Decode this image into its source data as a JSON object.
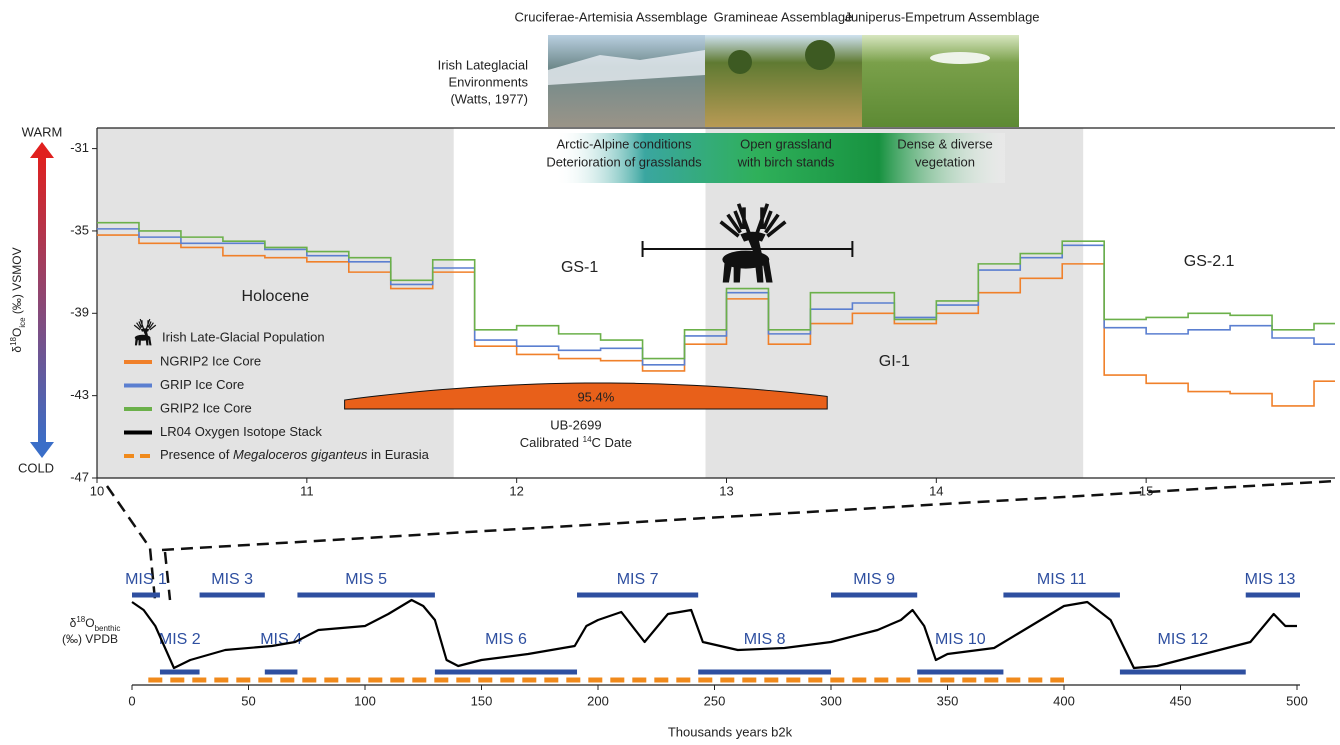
{
  "chart_data": [
    {
      "type": "step",
      "y_label_parts": [
        "δ",
        "18",
        "O",
        "ice",
        " (‰) VSMOV"
      ],
      "warm_label": "WARM",
      "cold_label": "COLD",
      "x": [
        10.0,
        10.2,
        10.4,
        10.6,
        10.8,
        11.0,
        11.2,
        11.4,
        11.6,
        11.8,
        12.0,
        12.2,
        12.4,
        12.6,
        12.8,
        13.0,
        13.2,
        13.4,
        13.6,
        13.8,
        14.0,
        14.2,
        14.4,
        14.6,
        14.8,
        15.0,
        15.2,
        15.4,
        15.6,
        15.8
      ],
      "series": [
        {
          "name": "NGRIP2 Ice Core",
          "color": "#f0802a",
          "values": [
            -35.2,
            -35.6,
            -35.8,
            -36.2,
            -36.3,
            -36.5,
            -37.0,
            -37.8,
            -37.0,
            -40.6,
            -41.0,
            -41.2,
            -41.3,
            -41.8,
            -40.5,
            -38.3,
            -40.5,
            -39.5,
            -39.0,
            -39.5,
            -39.0,
            -38.0,
            -37.3,
            -36.6,
            -42.0,
            -42.4,
            -42.8,
            -42.9,
            -43.5,
            -42.3
          ]
        },
        {
          "name": "GRIP Ice Core",
          "color": "#5b7fd0",
          "values": [
            -34.9,
            -35.3,
            -35.6,
            -35.6,
            -35.9,
            -36.2,
            -36.5,
            -37.6,
            -36.8,
            -40.3,
            -40.6,
            -40.8,
            -40.7,
            -41.5,
            -40.1,
            -38.0,
            -40.0,
            -38.8,
            -38.5,
            -39.2,
            -38.6,
            -36.9,
            -36.3,
            -35.7,
            -39.7,
            -40.0,
            -39.8,
            -39.6,
            -40.2,
            -40.5
          ]
        },
        {
          "name": "GRIP2 Ice Core",
          "color": "#6bb04a",
          "values": [
            -34.6,
            -35.0,
            -35.3,
            -35.5,
            -35.8,
            -36.0,
            -36.3,
            -37.4,
            -36.4,
            -39.8,
            -39.6,
            -40.0,
            -40.3,
            -41.2,
            -39.8,
            -37.8,
            -39.8,
            -38.0,
            -38.0,
            -39.3,
            -38.4,
            -36.6,
            -36.1,
            -35.5,
            -39.3,
            -39.2,
            -39.0,
            -39.1,
            -39.8,
            -39.5
          ]
        }
      ],
      "xlim": [
        10,
        15.9
      ],
      "xticks": [
        10,
        11,
        12,
        13,
        14,
        15
      ],
      "ylim": [
        -47,
        -30
      ],
      "yticks": [
        -47,
        -43,
        -39,
        -35,
        -31
      ],
      "periods": [
        {
          "label": "Holocene",
          "start": 10,
          "end": 11.7,
          "shaded": true
        },
        {
          "label": "GS-1",
          "start": 11.7,
          "end": 12.9,
          "shaded": false
        },
        {
          "label": "GI-1",
          "start": 12.9,
          "end": 14.7,
          "shaded": true
        },
        {
          "label": "GS-2.1",
          "start": 14.7,
          "end": 15.9,
          "shaded": false
        }
      ],
      "source_label": [
        "Irish Lateglacial",
        "Environments",
        "(Watts, 1977)"
      ],
      "vegetation": [
        {
          "label": "Cruciferae-Artemisia Assemblage",
          "conditions": [
            "Arctic-Alpine conditions",
            "Deterioration of grasslands"
          ]
        },
        {
          "label": "Gramineae Assemblage",
          "conditions": [
            "Open grassland",
            "with birch stands"
          ]
        },
        {
          "label": "Juniperus-Empetrum Assemblage",
          "conditions": [
            "Dense & diverse",
            "vegetation"
          ]
        }
      ],
      "population": {
        "name": "Irish Late-Glacial Population",
        "range": [
          12.6,
          13.6
        ]
      },
      "calibrated_date": {
        "label": "UB-2699",
        "probability_label": "95.4%",
        "caption_parts": [
          "Calibrated ",
          "14",
          "C Date"
        ],
        "range": [
          11.18,
          13.48
        ],
        "color": "#e8601a"
      }
    },
    {
      "type": "line",
      "y_label_parts": [
        "δ",
        "18",
        "O",
        "benthic",
        "(‰) VPDB"
      ],
      "x_label": "Thousands years b2k",
      "x": [
        0,
        5,
        10,
        18,
        25,
        40,
        60,
        70,
        80,
        100,
        110,
        120,
        125,
        130,
        135,
        140,
        150,
        170,
        190,
        195,
        200,
        210,
        220,
        230,
        240,
        245,
        260,
        280,
        300,
        320,
        330,
        335,
        340,
        345,
        350,
        370,
        380,
        400,
        410,
        420,
        430,
        440,
        460,
        480,
        490,
        495,
        500
      ],
      "series": [
        {
          "name": "LR04 Oxygen Isotope Stack",
          "color": "#000000",
          "values": [
            3.3,
            3.5,
            3.9,
            4.95,
            4.75,
            4.5,
            4.4,
            4.3,
            4.0,
            3.9,
            3.6,
            3.25,
            3.4,
            3.75,
            4.75,
            4.9,
            4.75,
            4.6,
            4.4,
            3.9,
            3.75,
            3.55,
            4.3,
            3.6,
            3.5,
            4.3,
            4.5,
            4.45,
            4.3,
            4.0,
            3.75,
            3.5,
            3.9,
            4.75,
            4.6,
            4.45,
            4.1,
            3.4,
            3.3,
            3.75,
            4.95,
            4.9,
            4.6,
            4.3,
            3.6,
            3.9,
            3.9
          ]
        }
      ],
      "xlim": [
        0,
        500
      ],
      "xticks": [
        0,
        50,
        100,
        150,
        200,
        250,
        300,
        350,
        400,
        450,
        500
      ],
      "ylim": [
        5.2,
        3.0
      ],
      "stage_color": "#2e4fa0",
      "stages": [
        {
          "label": "MIS 1",
          "start": 0,
          "end": 12
        },
        {
          "label": "MIS 2",
          "start": 12,
          "end": 29
        },
        {
          "label": "MIS 3",
          "start": 29,
          "end": 57
        },
        {
          "label": "MIS 4",
          "start": 57,
          "end": 71
        },
        {
          "label": "MIS 5",
          "start": 71,
          "end": 130
        },
        {
          "label": "MIS 6",
          "start": 130,
          "end": 191
        },
        {
          "label": "MIS 7",
          "start": 191,
          "end": 243
        },
        {
          "label": "MIS 8",
          "start": 243,
          "end": 300
        },
        {
          "label": "MIS 9",
          "start": 300,
          "end": 337
        },
        {
          "label": "MIS 10",
          "start": 337,
          "end": 374
        },
        {
          "label": "MIS 11",
          "start": 374,
          "end": 424
        },
        {
          "label": "MIS 12",
          "start": 424,
          "end": 478
        },
        {
          "label": "MIS 13",
          "start": 478,
          "end": 503
        }
      ],
      "presence": {
        "name_parts": [
          "Presence of ",
          "Megaloceros giganteus",
          " in Eurasia"
        ],
        "color": "#f08a1c",
        "range": [
          7,
          400
        ]
      }
    }
  ]
}
